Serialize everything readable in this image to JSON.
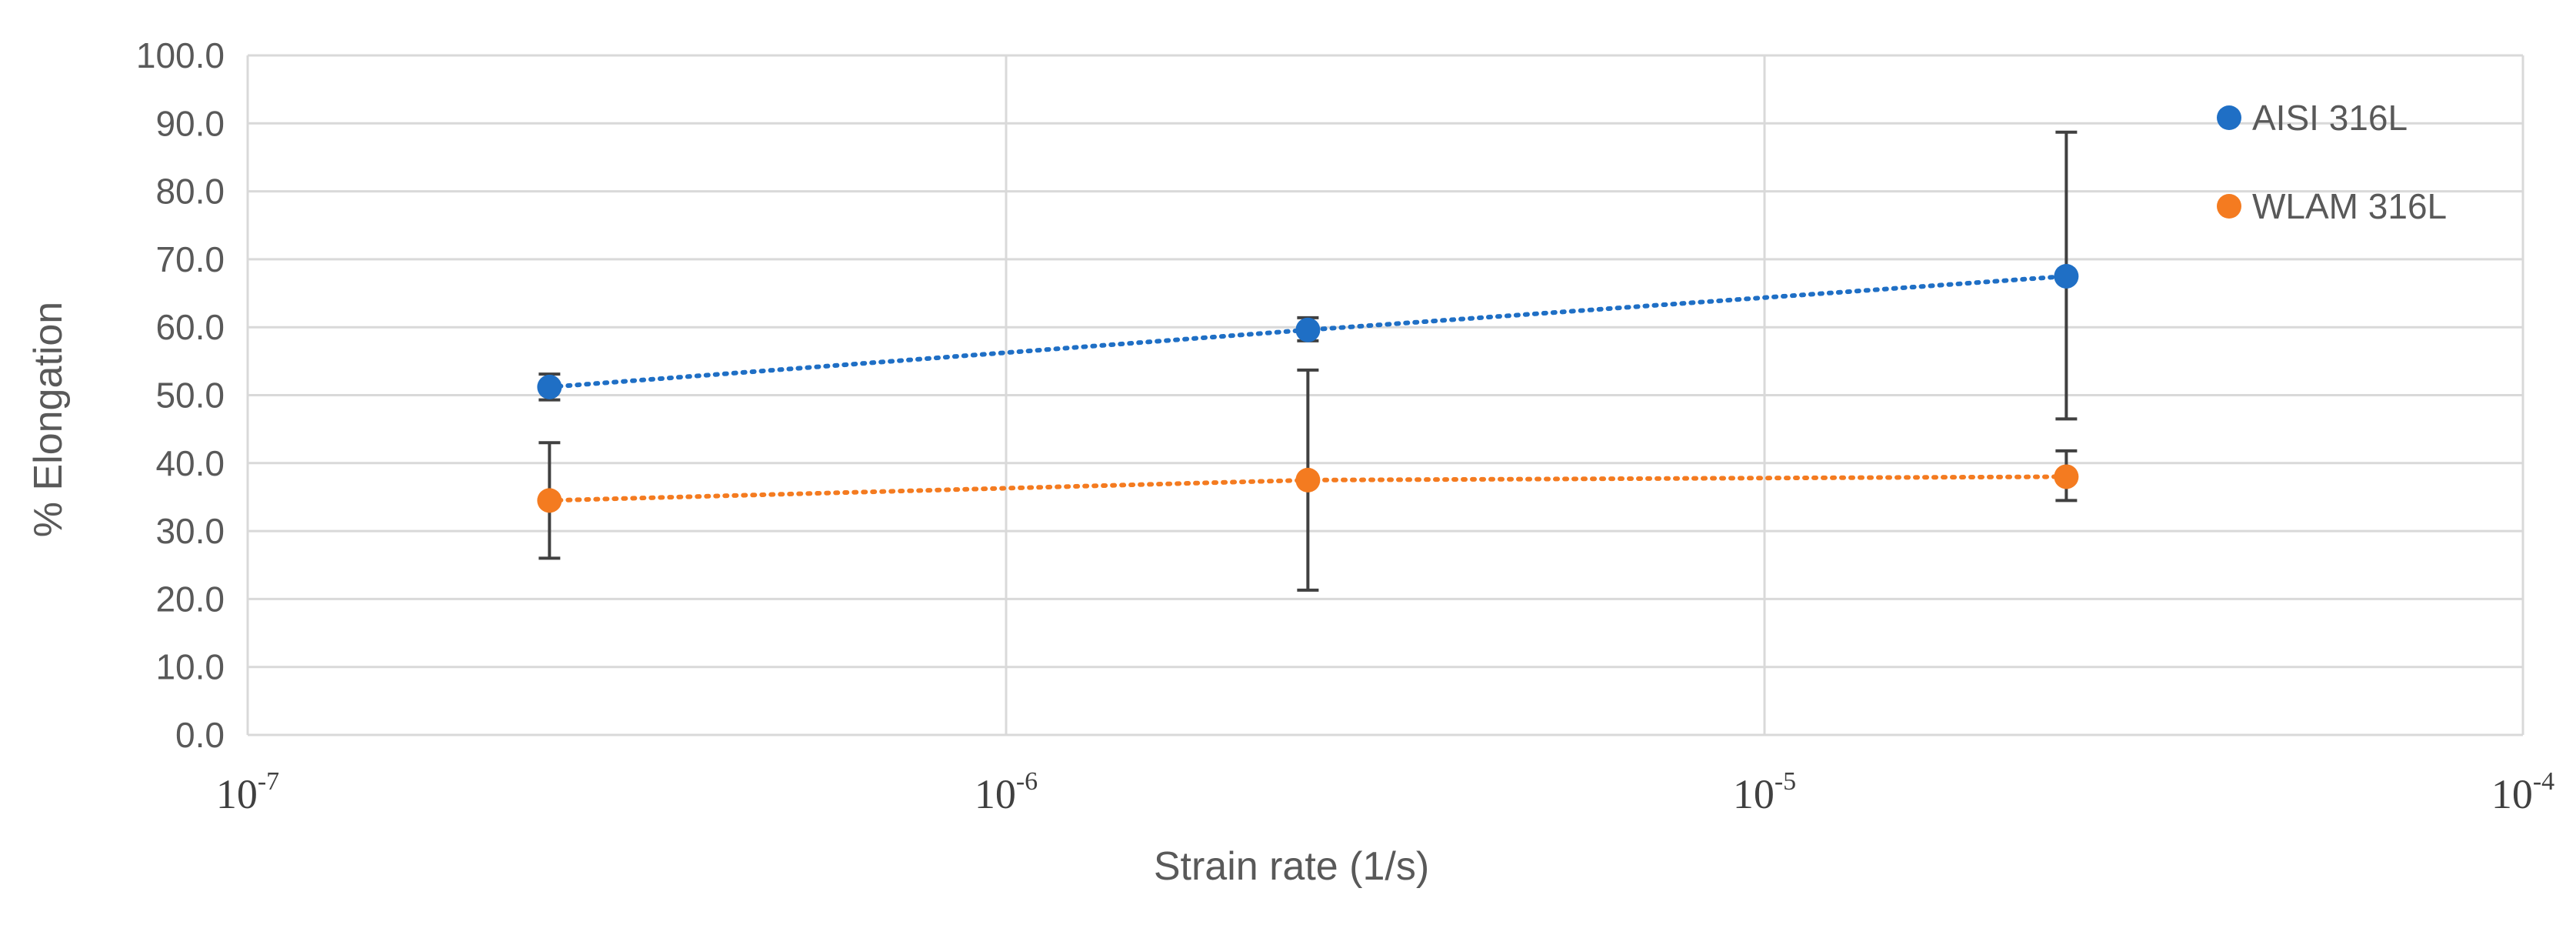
{
  "chart_data": {
    "type": "scatter",
    "title": "",
    "xlabel": "Strain rate (1/s)",
    "ylabel": "% Elongation",
    "xscale": "log",
    "xlim": [
      1e-07,
      0.0001
    ],
    "ylim": [
      0,
      100
    ],
    "yticks": [
      0,
      10,
      20,
      30,
      40,
      50,
      60,
      70,
      80,
      90,
      100
    ],
    "ytick_labels": [
      "0.0",
      "10.0",
      "20.0",
      "30.0",
      "40.0",
      "50.0",
      "60.0",
      "70.0",
      "80.0",
      "90.0",
      "100.0"
    ],
    "xticks": [
      {
        "value": 1e-07,
        "base": "10",
        "exp": "-7"
      },
      {
        "value": 1e-06,
        "base": "10",
        "exp": "-6"
      },
      {
        "value": 1e-05,
        "base": "10",
        "exp": "-5"
      },
      {
        "value": 0.0001,
        "base": "10",
        "exp": "-4"
      }
    ],
    "grid": true,
    "legend_position": "top-right",
    "series": [
      {
        "name": "AISI 316L",
        "color": "#1f6fc5",
        "trendline": "dotted",
        "points": [
          {
            "x": 2.5e-07,
            "y": 51.2,
            "err_low": 49.3,
            "err_high": 53.1
          },
          {
            "x": 2.5e-06,
            "y": 59.6,
            "err_low": 58.0,
            "err_high": 61.4
          },
          {
            "x": 2.5e-05,
            "y": 67.5,
            "err_low": 46.5,
            "err_high": 88.7
          }
        ]
      },
      {
        "name": "WLAM 316L",
        "color": "#f47b20",
        "trendline": "dotted",
        "points": [
          {
            "x": 2.5e-07,
            "y": 34.5,
            "err_low": 26.0,
            "err_high": 43.0
          },
          {
            "x": 2.5e-06,
            "y": 37.5,
            "err_low": 21.3,
            "err_high": 53.7
          },
          {
            "x": 2.5e-05,
            "y": 38.0,
            "err_low": 34.5,
            "err_high": 41.8
          }
        ]
      }
    ]
  }
}
